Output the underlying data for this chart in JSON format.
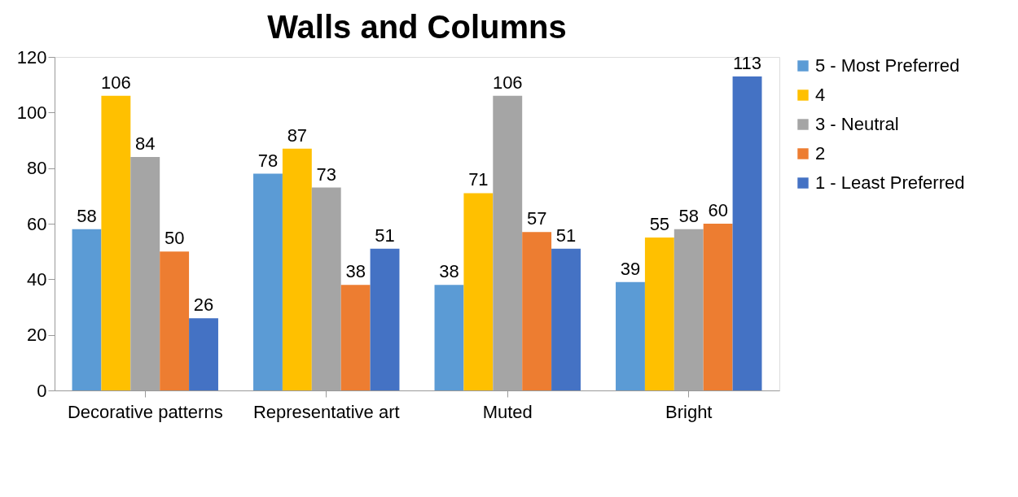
{
  "chart_data": {
    "type": "bar",
    "title": "Walls and Columns",
    "categories": [
      "Decorative patterns",
      "Representative art",
      "Muted",
      "Bright"
    ],
    "series": [
      {
        "name": "5 - Most Preferred",
        "color": "#5b9bd5",
        "values": [
          58,
          78,
          38,
          39
        ]
      },
      {
        "name": "4",
        "color": "#ffc000",
        "values": [
          106,
          87,
          71,
          55
        ]
      },
      {
        "name": "3 - Neutral",
        "color": "#a5a5a5",
        "values": [
          84,
          73,
          106,
          58
        ]
      },
      {
        "name": "2",
        "color": "#ed7d31",
        "values": [
          50,
          38,
          57,
          60
        ]
      },
      {
        "name": "1 - Least Preferred",
        "color": "#4472c4",
        "values": [
          26,
          51,
          51,
          113
        ]
      }
    ],
    "ylim": [
      0,
      120
    ],
    "yticks": [
      0,
      20,
      40,
      60,
      80,
      100,
      120
    ],
    "grid": false,
    "legend": "right",
    "data_labels": true
  }
}
